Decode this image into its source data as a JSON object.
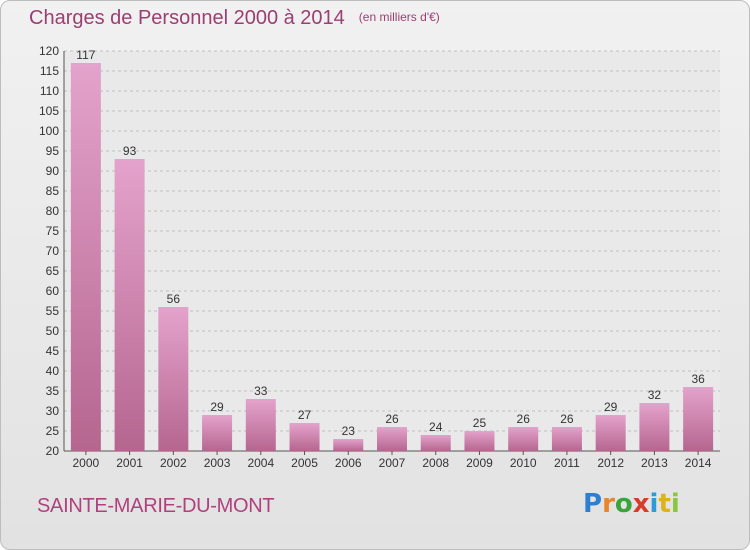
{
  "header": {
    "title": "Charges de Personnel 2000 à 2014",
    "subtitle": "(en milliers d'€)"
  },
  "footer": {
    "city": "SAINTE-MARIE-DU-MONT",
    "logo": [
      "P",
      "r",
      "o",
      "x",
      "i",
      "t",
      "i"
    ]
  },
  "colors": {
    "bar_top": "#e4a3cc",
    "bar_bottom": "#b5668f",
    "title": "#9b3f72",
    "grid": "#b0b0b0"
  },
  "chart_data": {
    "type": "bar",
    "categories": [
      "2000",
      "2001",
      "2002",
      "2003",
      "2004",
      "2005",
      "2006",
      "2007",
      "2008",
      "2009",
      "2010",
      "2011",
      "2012",
      "2013",
      "2014"
    ],
    "values": [
      117,
      93,
      56,
      29,
      33,
      27,
      23,
      26,
      24,
      25,
      26,
      26,
      29,
      32,
      36
    ],
    "title": "Charges de Personnel 2000 à 2014",
    "subtitle": "(en milliers d'€)",
    "xlabel": "",
    "ylabel": "",
    "ylim": [
      20,
      120
    ],
    "yticks": [
      20,
      25,
      30,
      35,
      40,
      45,
      50,
      55,
      60,
      65,
      70,
      75,
      80,
      85,
      90,
      95,
      100,
      105,
      110,
      115,
      120
    ],
    "grid": "horizontal dashed",
    "legend": "none"
  }
}
